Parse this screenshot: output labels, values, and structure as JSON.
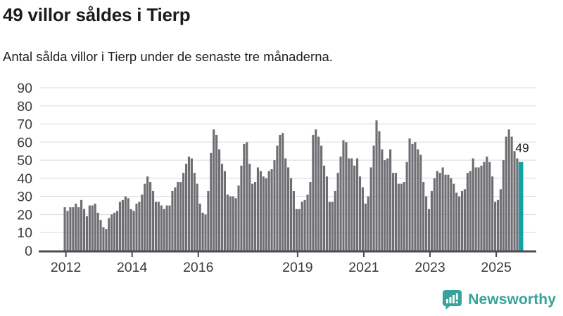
{
  "header": {
    "title": "49 villor såldes i Tierp",
    "subtitle": "Antal sålda villor i Tierp under de senaste tre månaderna."
  },
  "chart_data": {
    "type": "bar",
    "title": "49 villor såldes i Tierp",
    "xlabel": "",
    "ylabel": "",
    "x_start": "2012-01",
    "x_end": "2025-10",
    "frequency": "monthly",
    "values": [
      24,
      22,
      24,
      24,
      26,
      24,
      28,
      23,
      19,
      25,
      25,
      26,
      21,
      17,
      13,
      12,
      18,
      20,
      21,
      22,
      27,
      28,
      30,
      29,
      23,
      22,
      26,
      27,
      31,
      37,
      41,
      38,
      33,
      27,
      27,
      25,
      23,
      25,
      25,
      33,
      35,
      38,
      38,
      43,
      48,
      52,
      51,
      43,
      37,
      26,
      21,
      20,
      33,
      54,
      67,
      64,
      56,
      48,
      44,
      31,
      30,
      30,
      29,
      36,
      47,
      59,
      60,
      48,
      37,
      38,
      46,
      44,
      41,
      40,
      44,
      45,
      50,
      58,
      64,
      65,
      51,
      46,
      40,
      33,
      23,
      23,
      27,
      28,
      31,
      38,
      64,
      67,
      63,
      58,
      47,
      41,
      27,
      27,
      33,
      43,
      52,
      61,
      60,
      51,
      51,
      47,
      51,
      41,
      35,
      26,
      30,
      46,
      58,
      72,
      66,
      56,
      50,
      51,
      56,
      43,
      43,
      37,
      37,
      38,
      49,
      62,
      59,
      60,
      56,
      53,
      38,
      30,
      23,
      33,
      40,
      44,
      43,
      46,
      42,
      42,
      40,
      37,
      32,
      30,
      33,
      34,
      43,
      44,
      51,
      46,
      46,
      47,
      49,
      52,
      49,
      41,
      27,
      28,
      34,
      50,
      63,
      67,
      63,
      55,
      51,
      49
    ],
    "highlight": {
      "index_from_end": 1,
      "value": 49,
      "label": "49"
    },
    "ylim": [
      0,
      90
    ],
    "yticks": [
      0,
      10,
      20,
      30,
      40,
      50,
      60,
      70,
      80,
      90
    ],
    "xticks": [
      2012,
      2014,
      2016,
      2019,
      2021,
      2023,
      2025
    ],
    "grid": true,
    "legend": "none",
    "colors": {
      "bar": "#6f6e73",
      "highlight_bar": "#14a1a5",
      "gridline": "#e1e1e1",
      "axis": "#4c4c50",
      "tick_label": "#3b3b3b",
      "annotation": "#1d1d1b"
    }
  },
  "branding": {
    "name": "Newsworthy",
    "color": "#38a39a",
    "icon": "newsworthy-speech-bubble-chart-icon"
  }
}
